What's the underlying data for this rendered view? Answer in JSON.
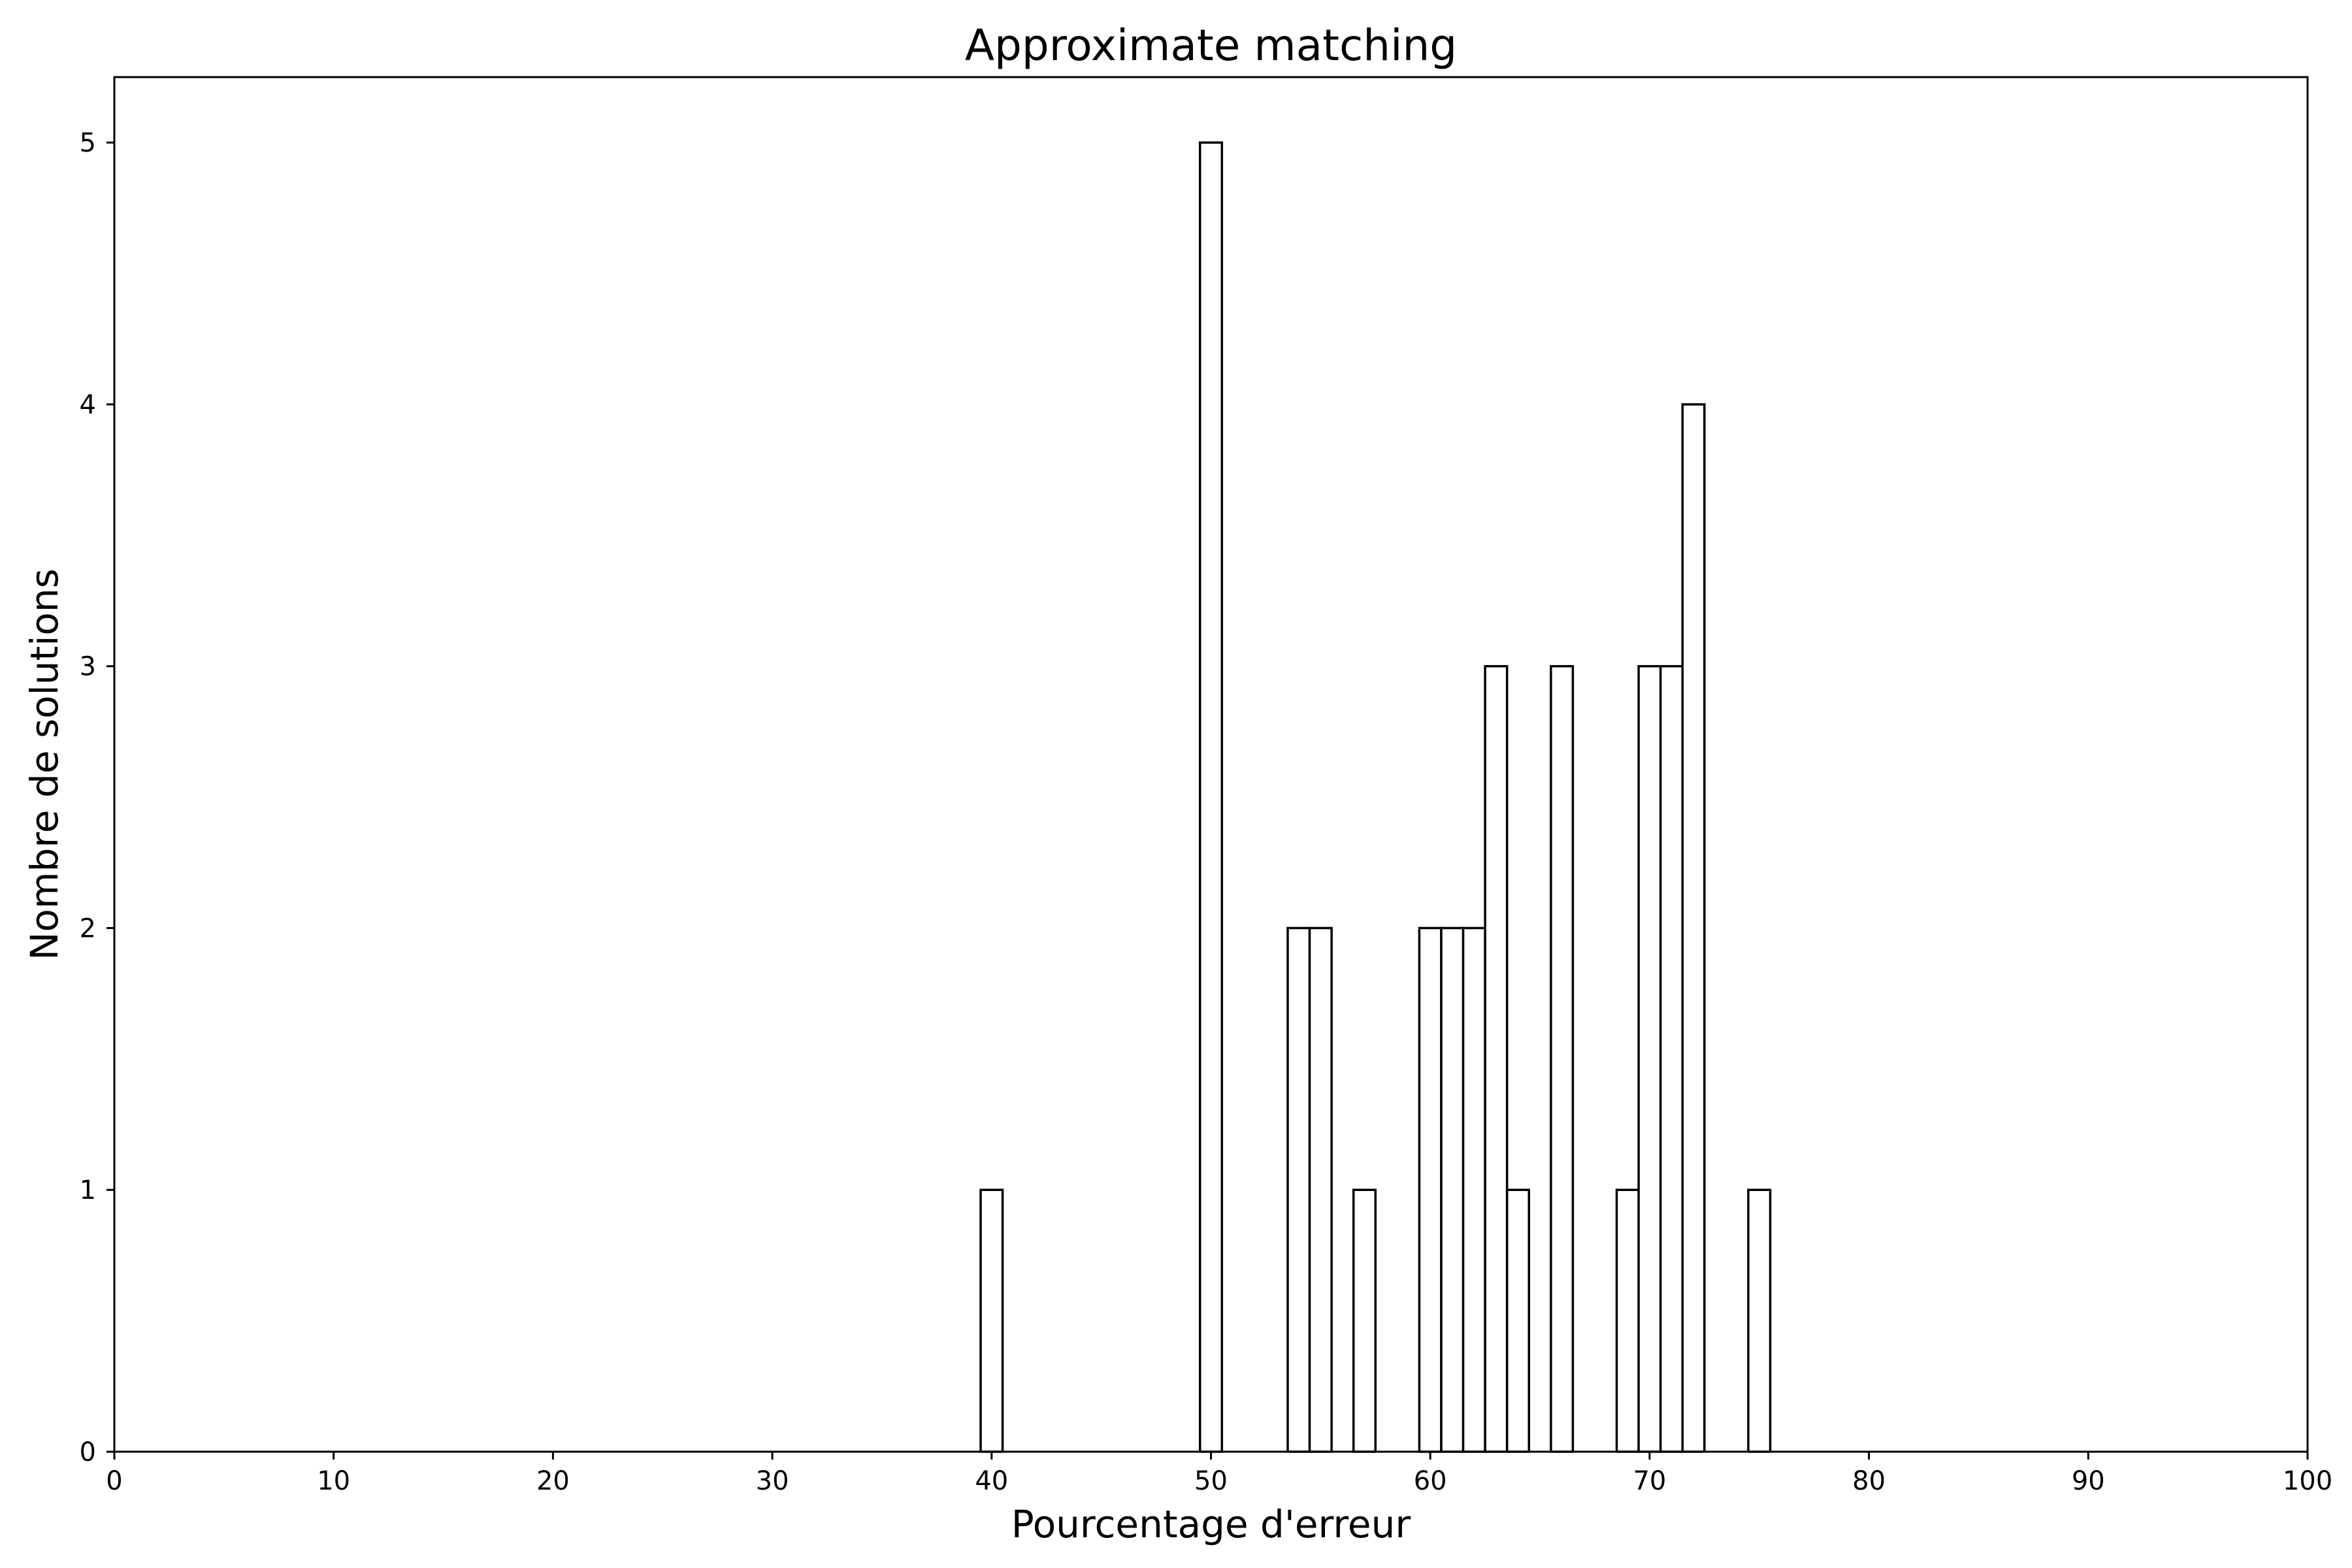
{
  "chart_data": {
    "type": "bar",
    "title": "Approximate matching",
    "xlabel": "Pourcentage d'erreur",
    "ylabel": "Nombre de solutions",
    "xlim": [
      0,
      100
    ],
    "ylim": [
      0,
      5.25
    ],
    "xticks": [
      0,
      10,
      20,
      30,
      40,
      50,
      60,
      70,
      80,
      90,
      100
    ],
    "yticks": [
      0,
      1,
      2,
      3,
      4,
      5
    ],
    "bin_width": 1,
    "grid": false,
    "bar_fill": "#ffffff",
    "bar_edge": "#000000",
    "bins": [
      {
        "x": 39.5,
        "count": 1
      },
      {
        "x": 49.5,
        "count": 5
      },
      {
        "x": 53.5,
        "count": 2
      },
      {
        "x": 54.5,
        "count": 2
      },
      {
        "x": 56.5,
        "count": 1
      },
      {
        "x": 59.5,
        "count": 2
      },
      {
        "x": 60.5,
        "count": 2
      },
      {
        "x": 61.5,
        "count": 2
      },
      {
        "x": 62.5,
        "count": 3
      },
      {
        "x": 63.5,
        "count": 1
      },
      {
        "x": 65.5,
        "count": 3
      },
      {
        "x": 68.5,
        "count": 1
      },
      {
        "x": 69.5,
        "count": 3
      },
      {
        "x": 70.5,
        "count": 3
      },
      {
        "x": 71.5,
        "count": 4
      },
      {
        "x": 74.5,
        "count": 1
      }
    ]
  }
}
